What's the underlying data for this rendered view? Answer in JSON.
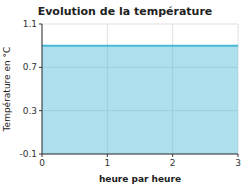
{
  "chart_data": {
    "type": "area",
    "title": "Evolution de la température",
    "xlabel": "heure par heure",
    "ylabel": "Température en °C",
    "x": [
      0,
      3
    ],
    "values": [
      0.9,
      0.9
    ],
    "color": "#4ab8d8",
    "xlim": [
      0,
      3
    ],
    "ylim": [
      -0.1,
      1.1
    ],
    "xticks": [
      0,
      1,
      2,
      3
    ],
    "yticks": [
      -0.1,
      0.3,
      0.7,
      1.1
    ],
    "grid": true
  }
}
